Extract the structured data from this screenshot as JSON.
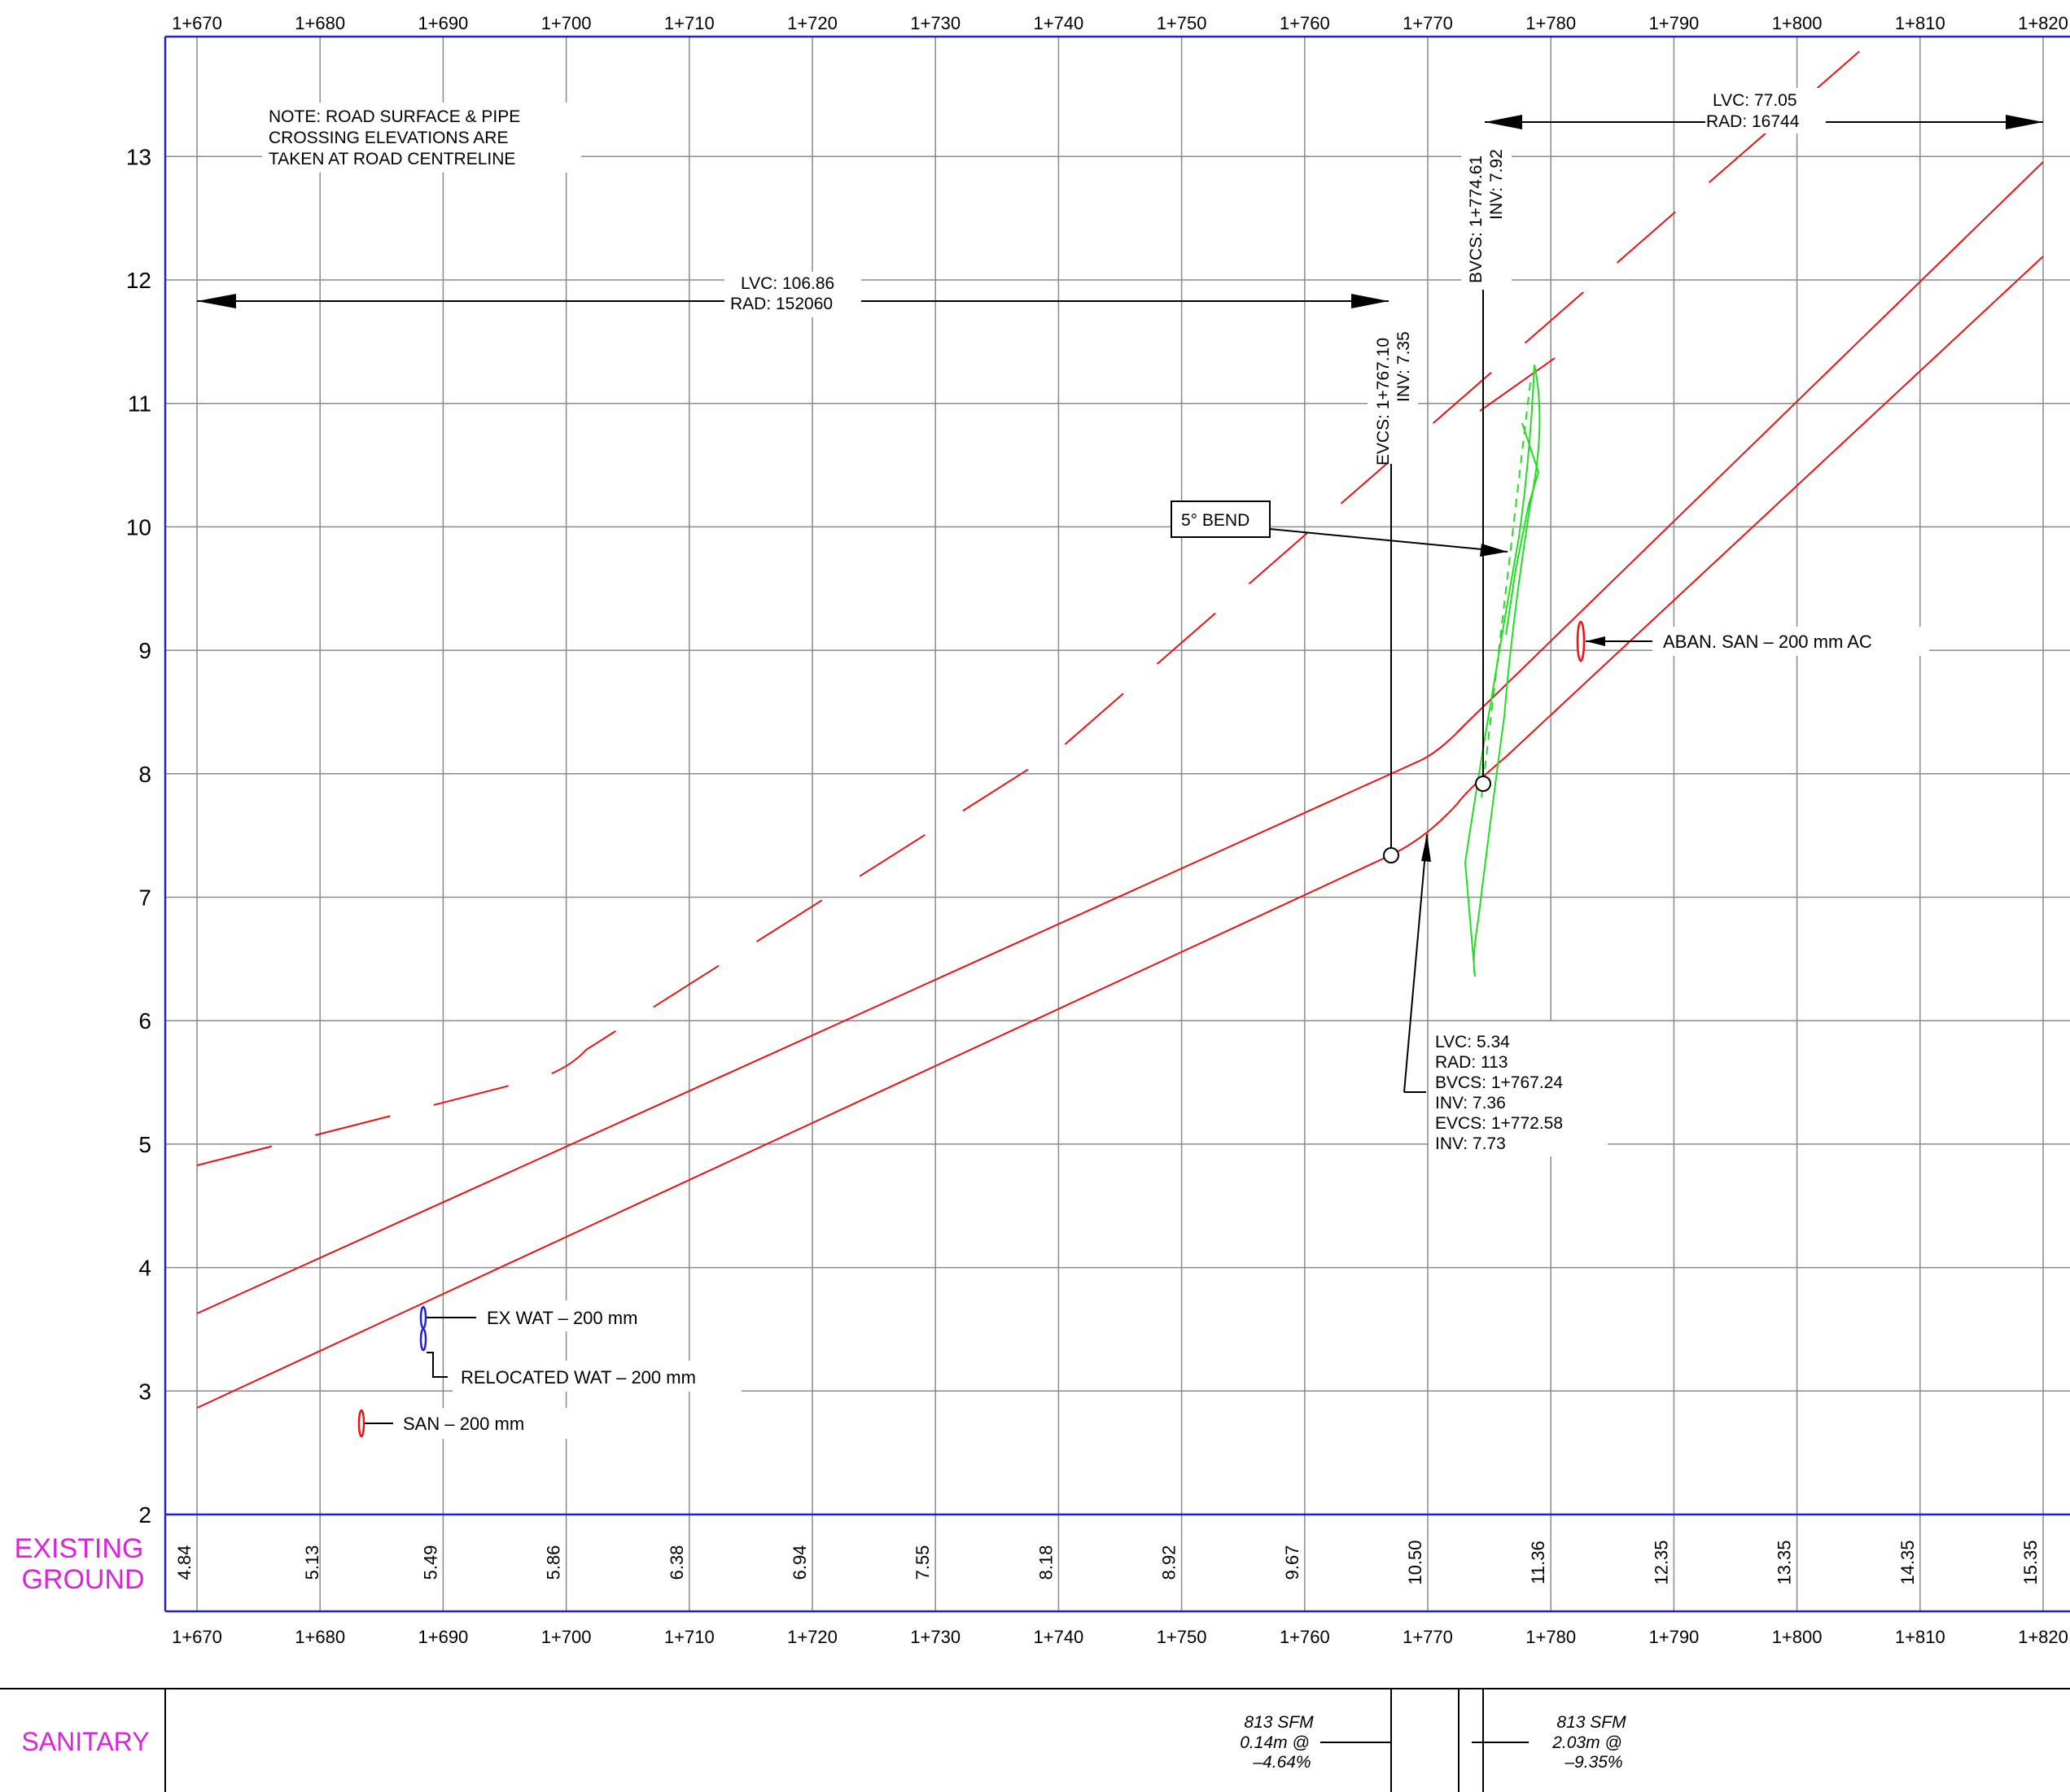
{
  "stations": [
    "1+670",
    "1+680",
    "1+690",
    "1+700",
    "1+710",
    "1+720",
    "1+730",
    "1+740",
    "1+750",
    "1+760",
    "1+770",
    "1+780",
    "1+790",
    "1+800",
    "1+810",
    "1+820"
  ],
  "elevations": [
    "2",
    "3",
    "4",
    "5",
    "6",
    "7",
    "8",
    "9",
    "10",
    "11",
    "12",
    "13"
  ],
  "existing_ground": {
    "label_line1": "EXISTING",
    "label_line2": "GROUND",
    "values": [
      "4.84",
      "5.13",
      "5.49",
      "5.86",
      "6.38",
      "6.94",
      "7.55",
      "8.18",
      "8.92",
      "9.67",
      "10.50",
      "11.36",
      "12.35",
      "13.35",
      "14.35",
      "15.35"
    ]
  },
  "note": {
    "line1": "NOTE:  ROAD SURFACE & PIPE",
    "line2": "CROSSING ELEVATIONS ARE",
    "line3": "TAKEN AT ROAD CENTRELINE"
  },
  "curves": {
    "vc1": {
      "lvc": "LVC: 106.86",
      "rad": "RAD:  152060"
    },
    "vc2": {
      "lvc": "LVC: 77.05",
      "rad": "RAD:  16744"
    },
    "vc3": {
      "lvc": "LVC: 5.34",
      "rad": "RAD:  113",
      "bvcs": "BVCS:  1+767.24",
      "inv1": "INV:  7.36",
      "evcs": "EVCS:  1+772.58",
      "inv2": "INV:  7.73"
    }
  },
  "callouts": {
    "evcs": {
      "line1": "EVCS:  1+767.10",
      "line2": "INV:  7.35"
    },
    "bvcs": {
      "line1": "BVCS:  1+774.61",
      "line2": "INV:  7.92"
    },
    "bend": "5° BEND",
    "aban_san": "ABAN. SAN  –  200 mm AC",
    "ex_wat": "EX WAT  –  200 mm",
    "relocated_wat": "RELOCATED WAT  –  200 mm",
    "san": "SAN  –  200 mm"
  },
  "sanitary": {
    "label": "SANITARY",
    "left": {
      "line1": "813 SFM",
      "line2": "0.14m @",
      "line3": "–4.64%"
    },
    "right": {
      "line1": "813 SFM",
      "line2": "2.03m @",
      "line3": "–9.35%"
    }
  },
  "colors": {
    "frame": "#2222cc",
    "grid": "#8a8a8a",
    "pipe": "#ee1111",
    "ground_label": "#dd22dd",
    "utility_green": "#22dd22",
    "water": "#2222dd"
  }
}
